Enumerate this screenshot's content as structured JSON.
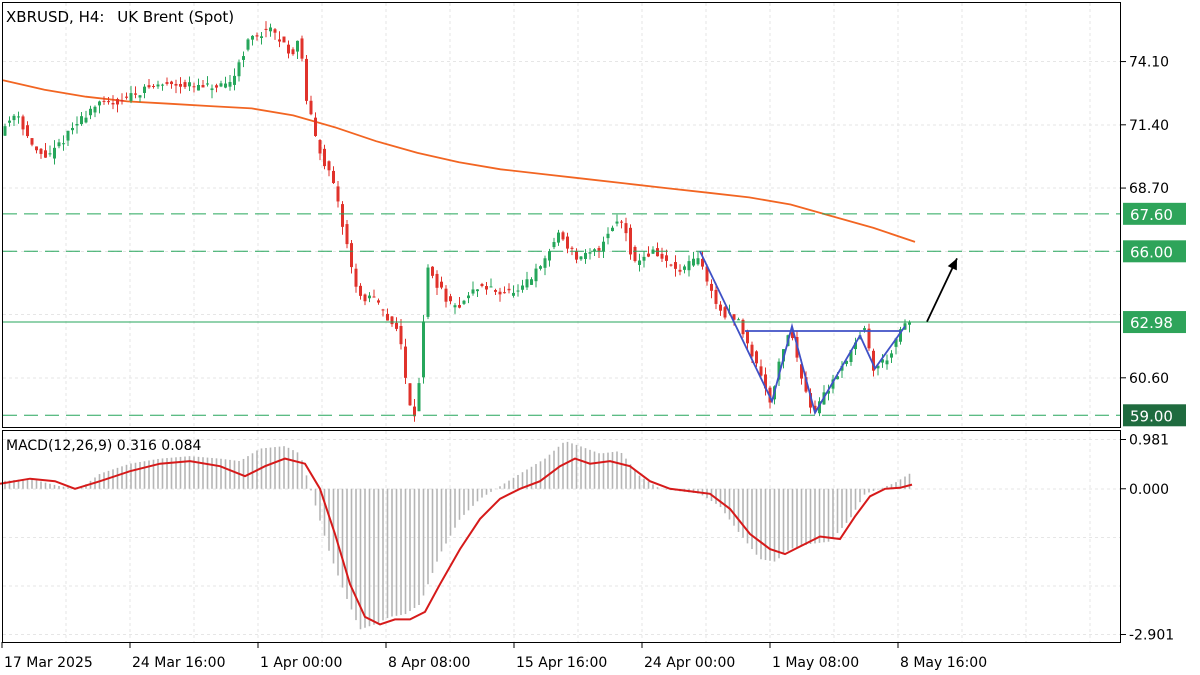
{
  "header": {
    "symbol": "XBRUSD, H4:",
    "name": "UK Brent (Spot)"
  },
  "colors": {
    "up": "#26a65b",
    "down": "#e0322b",
    "ma": "#f26522",
    "pattern": "#3f51c6",
    "level": "#26a65b",
    "tag_green": "#2ea45a",
    "tag_dark": "#1f6b3f",
    "macd_line": "#d61a1a",
    "histogram": "#b5b5b5",
    "arrow": "#000000"
  },
  "chart_data": [
    {
      "type": "candlestick",
      "title": "XBRUSD, H4: UK Brent (Spot)",
      "ylim": [
        58.5,
        76.6
      ],
      "y_ticks": [
        "74.10",
        "71.40",
        "68.70",
        "60.60"
      ],
      "x_ticks": [
        "17 Mar 2025",
        "24 Mar 16:00",
        "1 Apr 00:00",
        "8 Apr 08:00",
        "15 Apr 16:00",
        "24 Apr 00:00",
        "1 May 08:00",
        "8 May 16:00"
      ],
      "grid": true,
      "levels": [
        {
          "value": 67.6,
          "label": "67.60",
          "style": "dashed",
          "tag": "green"
        },
        {
          "value": 66.0,
          "label": "66.00",
          "style": "dashed",
          "tag": "green"
        },
        {
          "value": 62.98,
          "label": "62.98",
          "style": "solid",
          "tag": "green"
        },
        {
          "value": 59.0,
          "label": "59.00",
          "style": "dashed",
          "tag": "dark"
        }
      ],
      "moving_average": [
        73.3,
        72.9,
        72.6,
        72.4,
        72.3,
        72.2,
        72.1,
        71.8,
        71.3,
        70.7,
        70.2,
        69.8,
        69.5,
        69.3,
        69.1,
        68.9,
        68.7,
        68.5,
        68.3,
        68.0,
        67.5,
        67.0,
        66.4
      ],
      "price_path": [
        [
          0,
          71.0
        ],
        [
          18,
          72.0
        ],
        [
          35,
          70.3
        ],
        [
          50,
          70.0
        ],
        [
          75,
          71.3
        ],
        [
          95,
          72.2
        ],
        [
          120,
          72.4
        ],
        [
          150,
          73.0
        ],
        [
          175,
          73.2
        ],
        [
          200,
          73.0
        ],
        [
          230,
          73.0
        ],
        [
          250,
          75.0
        ],
        [
          270,
          75.5
        ],
        [
          295,
          74.4
        ],
        [
          300,
          75.3
        ],
        [
          308,
          72.5
        ],
        [
          318,
          70.7
        ],
        [
          335,
          68.8
        ],
        [
          350,
          66.0
        ],
        [
          360,
          64.0
        ],
        [
          375,
          64.0
        ],
        [
          390,
          63.0
        ],
        [
          400,
          62.8
        ],
        [
          407,
          60.5
        ],
        [
          415,
          58.8
        ],
        [
          422,
          60.9
        ],
        [
          428,
          65.3
        ],
        [
          440,
          64.5
        ],
        [
          455,
          63.5
        ],
        [
          480,
          64.5
        ],
        [
          500,
          64.3
        ],
        [
          520,
          64.2
        ],
        [
          545,
          65.5
        ],
        [
          560,
          66.8
        ],
        [
          580,
          65.6
        ],
        [
          600,
          66.1
        ],
        [
          615,
          67.2
        ],
        [
          625,
          67.3
        ],
        [
          635,
          65.5
        ],
        [
          655,
          66.0
        ],
        [
          680,
          65.1
        ],
        [
          700,
          65.7
        ],
        [
          720,
          63.5
        ],
        [
          740,
          63.0
        ],
        [
          760,
          61.0
        ],
        [
          772,
          59.6
        ],
        [
          782,
          61.5
        ],
        [
          792,
          62.8
        ],
        [
          800,
          61.0
        ],
        [
          815,
          59.1
        ],
        [
          830,
          60.2
        ],
        [
          845,
          61.2
        ],
        [
          860,
          62.4
        ],
        [
          865,
          62.8
        ],
        [
          875,
          61.0
        ],
        [
          890,
          61.5
        ],
        [
          905,
          62.8
        ],
        [
          912,
          63.0
        ]
      ],
      "pattern_lines": [
        [
          [
            700,
            66.0
          ],
          [
            772,
            59.6
          ],
          [
            792,
            62.8
          ],
          [
            815,
            59.1
          ],
          [
            860,
            62.4
          ],
          [
            875,
            61.0
          ],
          [
            905,
            62.8
          ]
        ],
        [
          [
            745,
            62.6
          ],
          [
            900,
            62.6
          ]
        ]
      ],
      "projection_arrow": {
        "from": [
          927,
          63.0
        ],
        "to": [
          957,
          65.7
        ]
      }
    },
    {
      "type": "bar",
      "title": "MACD(12,26,9) 0.316 0.084",
      "ylim": [
        -3.05,
        1.15
      ],
      "y_ticks": [
        "0.981",
        "0.000",
        "-2.901"
      ],
      "histogram_path": [
        [
          0,
          0.15
        ],
        [
          30,
          0.2
        ],
        [
          60,
          0.05
        ],
        [
          80,
          0.0
        ],
        [
          100,
          0.3
        ],
        [
          130,
          0.5
        ],
        [
          160,
          0.6
        ],
        [
          190,
          0.65
        ],
        [
          220,
          0.6
        ],
        [
          240,
          0.55
        ],
        [
          260,
          0.8
        ],
        [
          285,
          0.85
        ],
        [
          300,
          0.7
        ],
        [
          315,
          -0.3
        ],
        [
          330,
          -1.3
        ],
        [
          345,
          -2.1
        ],
        [
          360,
          -2.8
        ],
        [
          375,
          -2.7
        ],
        [
          390,
          -2.55
        ],
        [
          405,
          -2.5
        ],
        [
          420,
          -2.3
        ],
        [
          440,
          -1.3
        ],
        [
          460,
          -0.6
        ],
        [
          480,
          -0.2
        ],
        [
          500,
          0.05
        ],
        [
          520,
          0.3
        ],
        [
          545,
          0.6
        ],
        [
          565,
          0.95
        ],
        [
          580,
          0.85
        ],
        [
          600,
          0.7
        ],
        [
          620,
          0.75
        ],
        [
          640,
          0.25
        ],
        [
          660,
          0.0
        ],
        [
          680,
          -0.05
        ],
        [
          700,
          -0.1
        ],
        [
          720,
          -0.35
        ],
        [
          740,
          -0.9
        ],
        [
          760,
          -1.4
        ],
        [
          775,
          -1.45
        ],
        [
          790,
          -1.2
        ],
        [
          810,
          -1.1
        ],
        [
          830,
          -1.05
        ],
        [
          850,
          -0.6
        ],
        [
          865,
          -0.1
        ],
        [
          880,
          0.0
        ],
        [
          895,
          0.12
        ],
        [
          912,
          0.33
        ]
      ],
      "macd_line_path": [
        [
          0,
          0.1
        ],
        [
          30,
          0.2
        ],
        [
          55,
          0.15
        ],
        [
          75,
          0.0
        ],
        [
          100,
          0.15
        ],
        [
          130,
          0.35
        ],
        [
          160,
          0.5
        ],
        [
          190,
          0.55
        ],
        [
          220,
          0.45
        ],
        [
          245,
          0.25
        ],
        [
          265,
          0.45
        ],
        [
          285,
          0.6
        ],
        [
          305,
          0.5
        ],
        [
          320,
          0.0
        ],
        [
          335,
          -0.9
        ],
        [
          350,
          -1.9
        ],
        [
          365,
          -2.55
        ],
        [
          380,
          -2.7
        ],
        [
          395,
          -2.6
        ],
        [
          410,
          -2.6
        ],
        [
          425,
          -2.45
        ],
        [
          440,
          -1.9
        ],
        [
          460,
          -1.2
        ],
        [
          480,
          -0.6
        ],
        [
          500,
          -0.2
        ],
        [
          520,
          0.0
        ],
        [
          540,
          0.15
        ],
        [
          560,
          0.45
        ],
        [
          575,
          0.6
        ],
        [
          590,
          0.5
        ],
        [
          610,
          0.55
        ],
        [
          630,
          0.45
        ],
        [
          650,
          0.15
        ],
        [
          670,
          0.0
        ],
        [
          690,
          -0.05
        ],
        [
          710,
          -0.1
        ],
        [
          730,
          -0.4
        ],
        [
          750,
          -0.9
        ],
        [
          770,
          -1.2
        ],
        [
          785,
          -1.3
        ],
        [
          800,
          -1.15
        ],
        [
          820,
          -0.95
        ],
        [
          840,
          -1.0
        ],
        [
          855,
          -0.55
        ],
        [
          870,
          -0.15
        ],
        [
          885,
          0.0
        ],
        [
          900,
          0.02
        ],
        [
          912,
          0.084
        ]
      ]
    }
  ]
}
